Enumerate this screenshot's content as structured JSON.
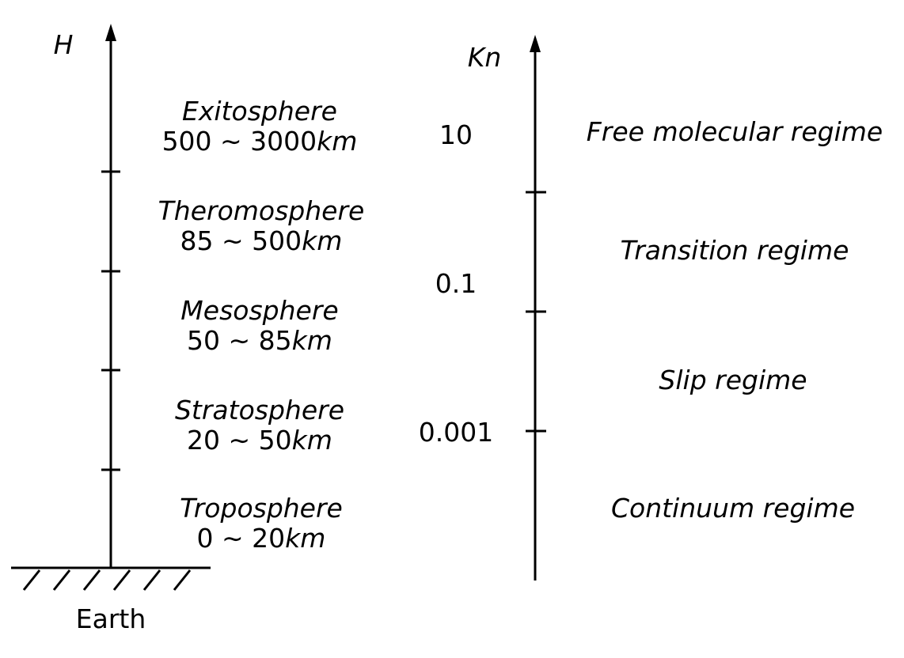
{
  "left_axis": {
    "label": "H",
    "ground_label": "Earth",
    "layers": [
      {
        "name": "Exitosphere",
        "range": "500 ∼ 3000",
        "unit": "km"
      },
      {
        "name": "Theromosphere",
        "range": "85 ∼ 500",
        "unit": "km"
      },
      {
        "name": "Mesosphere",
        "range": "50 ∼ 85",
        "unit": "km"
      },
      {
        "name": "Stratosphere",
        "range": "20 ∼ 50",
        "unit": "km"
      },
      {
        "name": "Troposphere",
        "range": "0 ∼ 20",
        "unit": "km"
      }
    ]
  },
  "right_axis": {
    "label": "Kn",
    "values": [
      "10",
      "0.1",
      "0.001"
    ],
    "regimes": [
      "Free molecular regime",
      "Transition regime",
      "Slip regime",
      "Continuum regime"
    ]
  }
}
